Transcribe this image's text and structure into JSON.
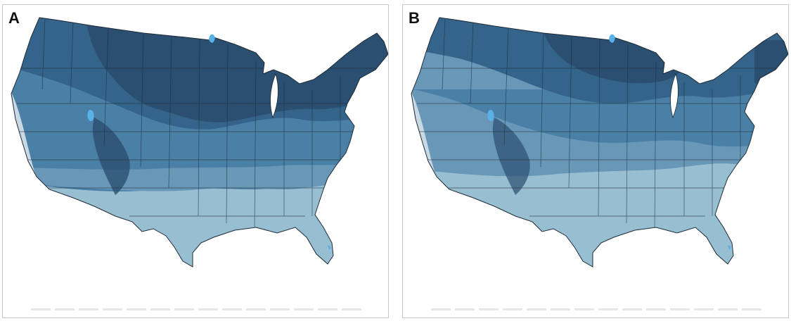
{
  "panels": [
    {
      "label": "A",
      "band_colors": [
        "#2b4f70",
        "#35648a",
        "#4a7fa6",
        "#6897b8",
        "#98bed2"
      ]
    },
    {
      "label": "B",
      "band_colors": [
        "#2b4f70",
        "#35648a",
        "#4a7fa6",
        "#6897b8",
        "#98bed2"
      ]
    }
  ],
  "colors": {
    "outline": "#1c2a36",
    "water": "#5ab1e8",
    "coast_light": "#c9d9e4",
    "frame": "#c9c9c9"
  }
}
